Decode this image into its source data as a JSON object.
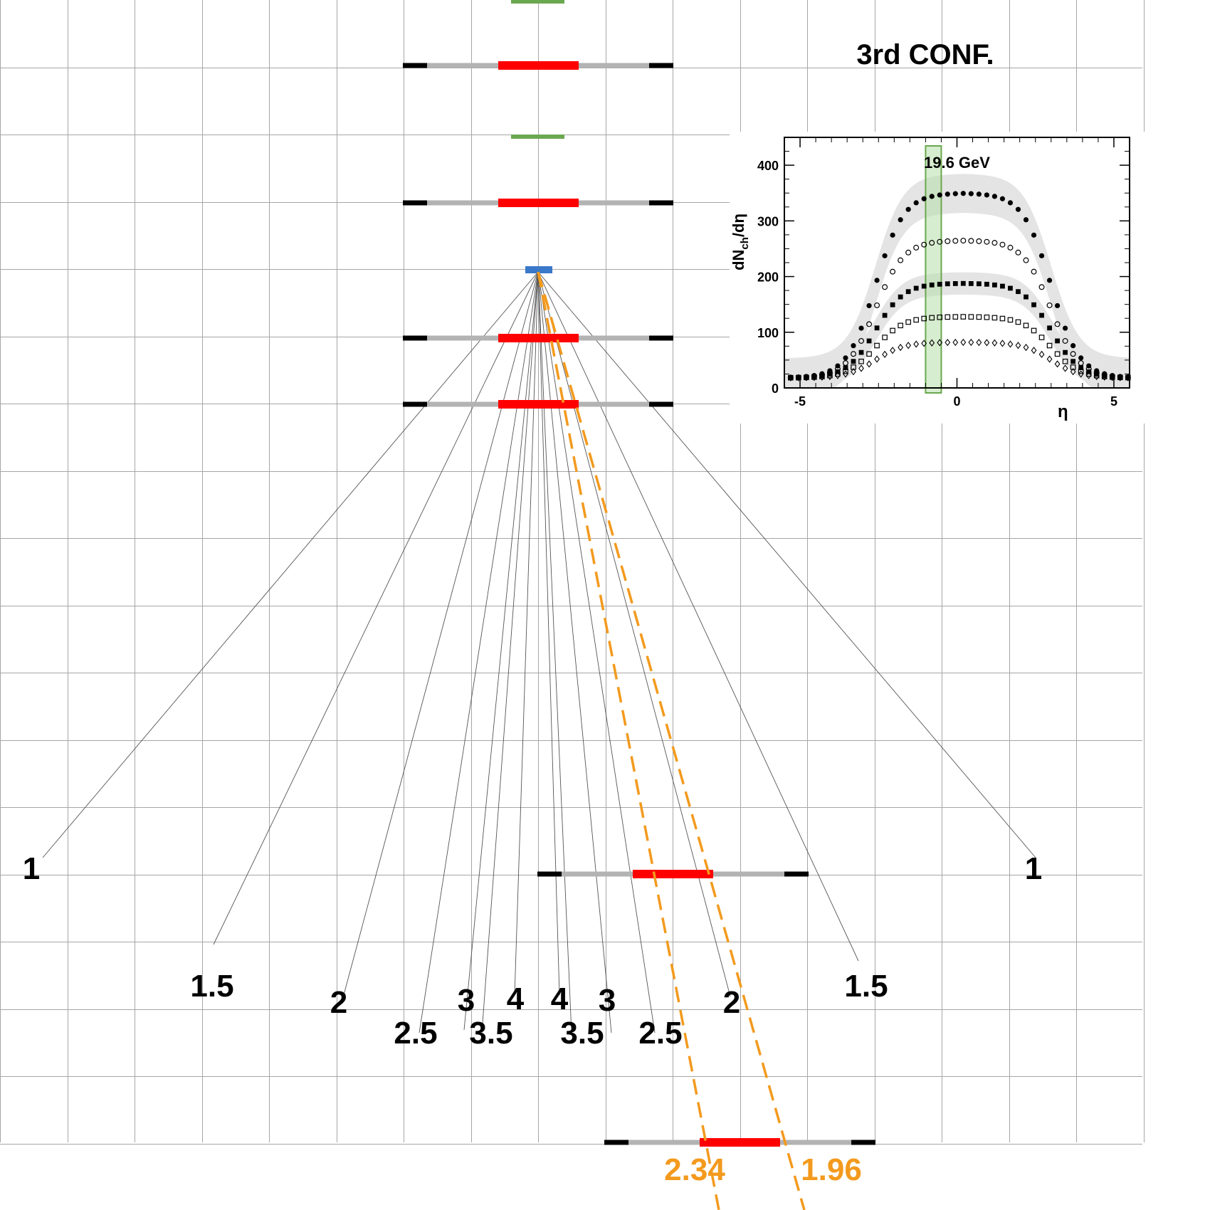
{
  "title": "3rd CONF.",
  "colors": {
    "grid": "#a6a6a6",
    "detector_active": "#ff0000",
    "detector_passive": "#b3b3b3",
    "detector_end": "#000000",
    "upstream_plane": "#6aa84f",
    "target": "#3a78c9",
    "highlight_track": "#f39a1e",
    "inset_band": "#b7dfa8"
  },
  "track_labels": {
    "left": [
      "1",
      "1.5",
      "2",
      "2.5",
      "3",
      "3.5",
      "4"
    ],
    "right": [
      "4",
      "3.5",
      "3",
      "2.5",
      "2",
      "1.5",
      "1"
    ]
  },
  "highlight_labels": [
    "2.34",
    "1.96"
  ],
  "inset": {
    "annotation": "19.6 GeV",
    "ylabel": "dN",
    "ylabel_sub": "ch",
    "ylabel_tail": "/dη",
    "xlabel": "η"
  },
  "chart_data": {
    "type": "scatter",
    "annotation": "19.6 GeV",
    "xlabel": "η",
    "ylabel": "dNch/dη",
    "xlim": [
      -5.5,
      5.5
    ],
    "ylim": [
      0,
      450
    ],
    "xticks": [
      "-5",
      "0",
      "5"
    ],
    "yticks": [
      "0",
      "100",
      "200",
      "300",
      "400"
    ],
    "highlight_band_eta": [
      -1.0,
      -0.5
    ],
    "series": [
      {
        "marker": "filled-circle",
        "plateau": 350,
        "band": 35
      },
      {
        "marker": "open-circle",
        "plateau": 265,
        "band": 0
      },
      {
        "marker": "filled-square",
        "plateau": 188,
        "band": 20
      },
      {
        "marker": "open-square",
        "plateau": 128,
        "band": 0
      },
      {
        "marker": "open-diamond",
        "plateau": 82,
        "band": 0
      }
    ]
  }
}
